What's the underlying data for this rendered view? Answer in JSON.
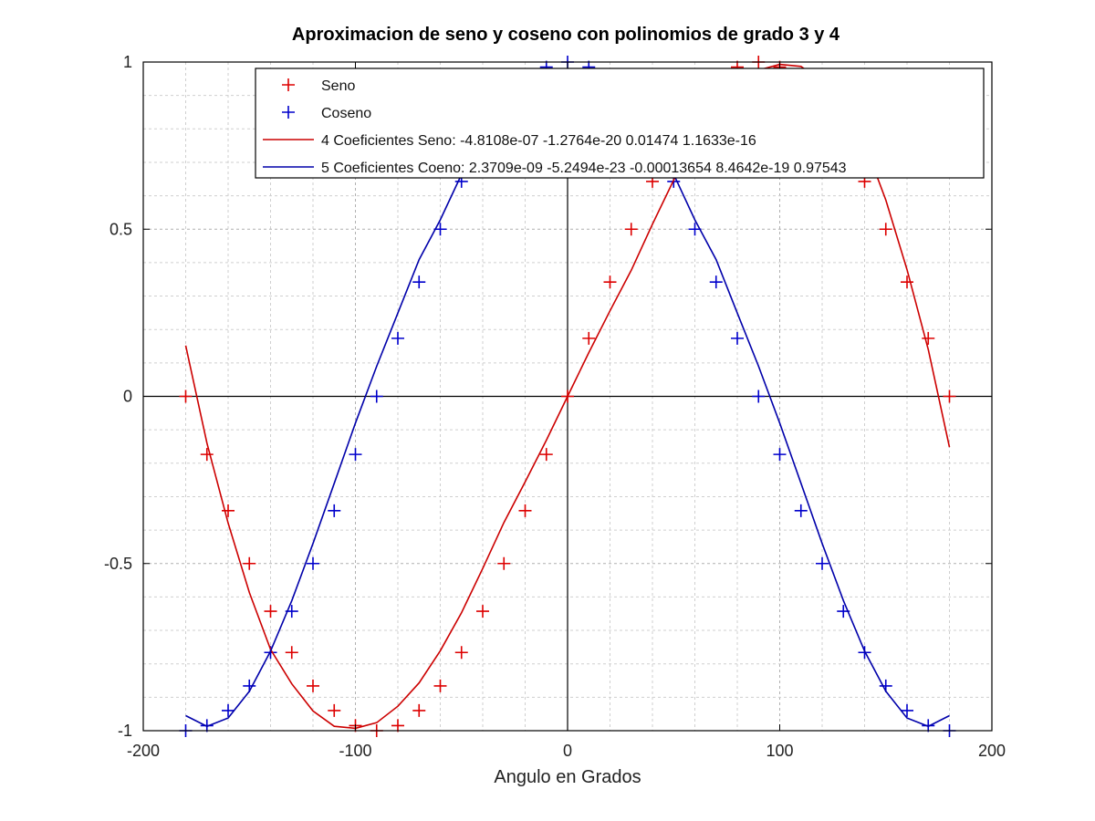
{
  "chart_data": {
    "type": "line",
    "title": "Aproximacion de seno y coseno con polinomios de grado 3 y 4",
    "xlabel": "Angulo en Grados",
    "ylabel": "",
    "xlim": [
      -200,
      200
    ],
    "ylim": [
      -1,
      1
    ],
    "xticks": [
      -200,
      -100,
      0,
      100,
      200
    ],
    "yticks": [
      -1,
      -0.5,
      0,
      0.5,
      1
    ],
    "xtick_labels": [
      "-200",
      "-100",
      "0",
      "100",
      "200"
    ],
    "ytick_labels": [
      "-1",
      "-0.5",
      "0",
      "0.5",
      "1"
    ],
    "grid": true,
    "legend_position": "top-right",
    "x": [
      -180,
      -170,
      -160,
      -150,
      -140,
      -130,
      -120,
      -110,
      -100,
      -90,
      -80,
      -70,
      -60,
      -50,
      -40,
      -30,
      -20,
      -10,
      0,
      10,
      20,
      30,
      40,
      50,
      60,
      70,
      80,
      90,
      100,
      110,
      120,
      130,
      140,
      150,
      160,
      170,
      180
    ],
    "series": [
      {
        "name": "Seno",
        "kind": "marker",
        "color": "#dd0000",
        "values": [
          0,
          -0.1736,
          -0.342,
          -0.5,
          -0.6428,
          -0.766,
          -0.866,
          -0.9397,
          -0.9848,
          -1,
          -0.9848,
          -0.9397,
          -0.866,
          -0.766,
          -0.6428,
          -0.5,
          -0.342,
          -0.1736,
          0,
          0.1736,
          0.342,
          0.5,
          0.6428,
          0.766,
          0.866,
          0.9397,
          0.9848,
          1,
          0.9848,
          0.9397,
          0.866,
          0.766,
          0.6428,
          0.5,
          0.342,
          0.1736,
          0
        ]
      },
      {
        "name": "Coseno",
        "kind": "marker",
        "color": "#0000cc",
        "values": [
          -1,
          -0.9848,
          -0.9397,
          -0.866,
          -0.766,
          -0.6428,
          -0.5,
          -0.342,
          -0.1736,
          0,
          0.1736,
          0.342,
          0.5,
          0.6428,
          0.766,
          0.866,
          0.9397,
          0.9848,
          1,
          0.9848,
          0.9397,
          0.866,
          0.766,
          0.6428,
          0.5,
          0.342,
          0.1736,
          0,
          -0.1736,
          -0.342,
          -0.5,
          -0.6428,
          -0.766,
          -0.866,
          -0.9397,
          -0.9848,
          -1
        ]
      },
      {
        "name": "4 Coeficientes Seno: -4.8108e-07 -1.2764e-20     0.01474  1.1633e-16",
        "kind": "line",
        "color": "#cc0000",
        "values": [
          0.152,
          -0.14,
          -0.379,
          -0.587,
          -0.757,
          -0.86,
          -0.941,
          -0.987,
          -0.993,
          -0.976,
          -0.927,
          -0.857,
          -0.761,
          -0.647,
          -0.515,
          -0.377,
          -0.256,
          -0.131,
          0,
          0.131,
          0.256,
          0.377,
          0.515,
          0.647,
          0.761,
          0.857,
          0.927,
          0.976,
          0.993,
          0.987,
          0.941,
          0.86,
          0.757,
          0.587,
          0.379,
          0.14,
          -0.152
        ]
      },
      {
        "name": "5 Coeficientes Coeno: 2.3709e-09 -5.2494e-23 -0.00013654  8.4642e-19     0.97543",
        "kind": "line",
        "color": "#0000aa",
        "values": [
          -0.955,
          -0.987,
          -0.962,
          -0.882,
          -0.762,
          -0.611,
          -0.44,
          -0.26,
          -0.08,
          0.09,
          0.249,
          0.409,
          0.528,
          0.664,
          0.774,
          0.845,
          0.907,
          0.951,
          0.975,
          0.951,
          0.907,
          0.845,
          0.774,
          0.664,
          0.528,
          0.409,
          0.249,
          0.09,
          -0.08,
          -0.26,
          -0.44,
          -0.611,
          -0.762,
          -0.882,
          -0.962,
          -0.987,
          -0.955
        ]
      }
    ]
  }
}
